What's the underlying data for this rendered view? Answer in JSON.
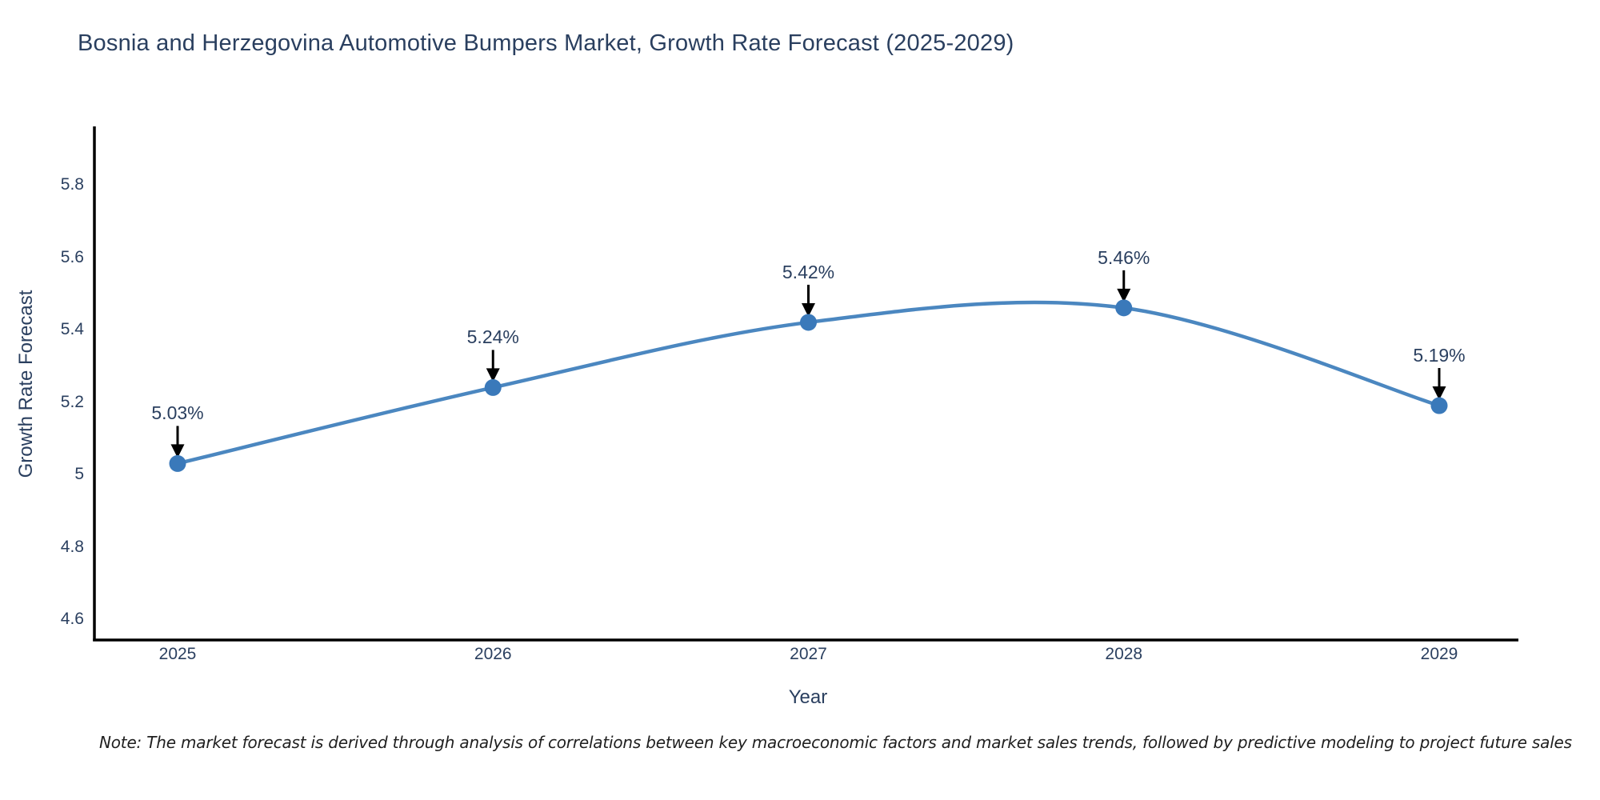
{
  "title": "Bosnia and Herzegovina Automotive Bumpers Market, Growth Rate Forecast (2025-2029)",
  "note": "Note: The market forecast is derived through analysis of correlations between key macroeconomic factors and market sales trends, followed by predictive modeling to project future sales",
  "chart_data": {
    "type": "line",
    "title": "Bosnia and Herzegovina Automotive Bumpers Market, Growth Rate Forecast (2025-2029)",
    "xlabel": "Year",
    "ylabel": "Growth Rate Forecast",
    "x": [
      2025,
      2026,
      2027,
      2028,
      2029
    ],
    "series": [
      {
        "name": "Growth Rate Forecast",
        "values": [
          5.03,
          5.24,
          5.42,
          5.46,
          5.19
        ]
      }
    ],
    "annotations": [
      "5.03%",
      "5.24%",
      "5.42%",
      "5.46%",
      "5.19%"
    ],
    "xticks": [
      "2025",
      "2026",
      "2027",
      "2028",
      "2029"
    ],
    "yticks": [
      "5.8",
      "5.6",
      "5.4",
      "5.2",
      "5",
      "4.8",
      "4.6"
    ],
    "ylim": [
      4.52,
      5.97
    ],
    "line_shape": "spline",
    "grid": false,
    "legend": "none",
    "colors": {
      "line": "#4b87c0",
      "marker": "#3a79ba",
      "axis": "#000000",
      "arrow": "#000000",
      "text": "#2a3f5f"
    }
  }
}
